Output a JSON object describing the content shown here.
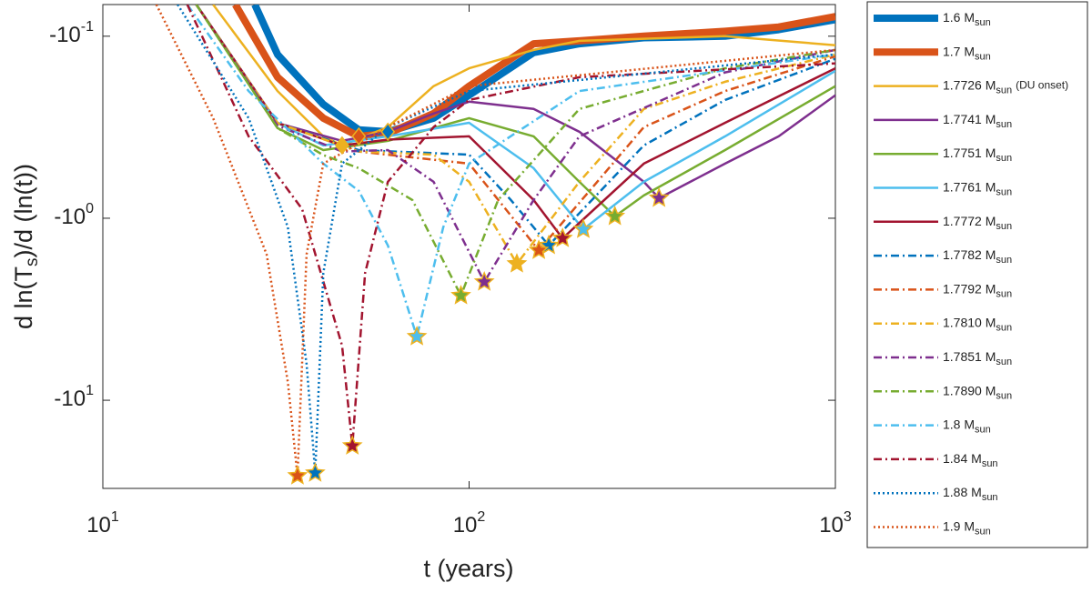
{
  "chart_data": {
    "type": "line",
    "xlabel": "t (years)",
    "ylabel": [
      "d ln(T",
      "s",
      ")/d (ln(t))"
    ],
    "xscale": "log",
    "yscale": "log",
    "xlim": [
      10,
      1000
    ],
    "ylim": [
      -30.5,
      -0.067
    ],
    "xticks": [
      {
        "value": 10,
        "label": "10",
        "exp": "1"
      },
      {
        "value": 100,
        "label": "10",
        "exp": "2"
      },
      {
        "value": 1000,
        "label": "10",
        "exp": "3"
      }
    ],
    "yticks": [
      {
        "value": -0.1,
        "label": "-10",
        "exp": "-1"
      },
      {
        "value": -1,
        "label": "-10",
        "exp": "0"
      },
      {
        "value": -10,
        "label": "-10",
        "exp": "1"
      }
    ],
    "legend": "outside-right",
    "series": [
      {
        "name": "1.6 M",
        "sub": "sun",
        "color": "#0072bd",
        "style": "solid",
        "width": 8,
        "marker": "diamond",
        "x": [
          26,
          30,
          40,
          50,
          60,
          80,
          100,
          150,
          200,
          300,
          500,
          700,
          1000
        ],
        "values": [
          -0.067,
          -0.126,
          -0.237,
          -0.327,
          -0.335,
          -0.282,
          -0.211,
          -0.123,
          -0.11,
          -0.102,
          -0.1,
          -0.092,
          -0.081
        ]
      },
      {
        "name": "1.7 M",
        "sub": "sun",
        "color": "#d95319",
        "style": "solid",
        "width": 8,
        "marker": "diamond",
        "x": [
          23,
          30,
          40,
          50,
          60,
          80,
          100,
          150,
          200,
          300,
          500,
          700,
          1000
        ],
        "values": [
          -0.067,
          -0.168,
          -0.282,
          -0.355,
          -0.343,
          -0.266,
          -0.188,
          -0.11,
          -0.106,
          -0.1,
          -0.094,
          -0.089,
          -0.078
        ]
      },
      {
        "name": "1.7726 M",
        "sub": "sun",
        "note": "(DU onset)",
        "color": "#edb120",
        "style": "solid",
        "width": 2.5,
        "marker": "diamond",
        "x": [
          20,
          30,
          40,
          45,
          60,
          80,
          100,
          150,
          200,
          500,
          1000
        ],
        "values": [
          -0.067,
          -0.2,
          -0.355,
          -0.398,
          -0.316,
          -0.188,
          -0.15,
          -0.119,
          -0.106,
          -0.1,
          -0.112
        ]
      },
      {
        "name": "1.7741 M",
        "sub": "sun",
        "color": "#7e2f8e",
        "style": "solid",
        "width": 2.5,
        "marker": "star",
        "x": [
          18,
          30,
          45,
          60,
          80,
          100,
          150,
          200,
          300,
          330,
          500,
          700,
          1000
        ],
        "values": [
          -0.067,
          -0.3,
          -0.376,
          -0.335,
          -0.266,
          -0.229,
          -0.251,
          -0.335,
          -0.631,
          -0.776,
          -0.501,
          -0.355,
          -0.211
        ]
      },
      {
        "name": "1.7751 M",
        "sub": "sun",
        "color": "#77ac30",
        "style": "solid",
        "width": 2.5,
        "marker": "star",
        "x": [
          18,
          30,
          40,
          60,
          100,
          150,
          200,
          250,
          300,
          500,
          1000
        ],
        "values": [
          -0.067,
          -0.32,
          -0.422,
          -0.376,
          -0.282,
          -0.355,
          -0.631,
          -0.977,
          -0.75,
          -0.422,
          -0.188
        ]
      },
      {
        "name": "1.7761 M",
        "sub": "sun",
        "color": "#4dbeee",
        "style": "solid",
        "width": 2.5,
        "marker": "star",
        "x": [
          18,
          30,
          40,
          60,
          100,
          150,
          205,
          300,
          500,
          1000
        ],
        "values": [
          -0.067,
          -0.3,
          -0.398,
          -0.355,
          -0.299,
          -0.531,
          -1.15,
          -0.631,
          -0.355,
          -0.155
        ]
      },
      {
        "name": "1.7772 M",
        "sub": "sun",
        "color": "#a2142f",
        "style": "solid",
        "width": 2.5,
        "marker": "star",
        "x": [
          18,
          30,
          45,
          60,
          100,
          150,
          180,
          300,
          500,
          1000
        ],
        "values": [
          -0.067,
          -0.3,
          -0.398,
          -0.37,
          -0.355,
          -0.794,
          -1.29,
          -0.501,
          -0.299,
          -0.15
        ]
      },
      {
        "name": "1.7782 M",
        "sub": "sun",
        "color": "#0072bd",
        "style": "dashdot",
        "width": 2.5,
        "marker": "star",
        "x": [
          18,
          30,
          50,
          100,
          130,
          165,
          300,
          500,
          1000
        ],
        "values": [
          -0.067,
          -0.3,
          -0.422,
          -0.447,
          -0.794,
          -1.41,
          -0.398,
          -0.224,
          -0.133
        ]
      },
      {
        "name": "1.7792 M",
        "sub": "sun",
        "color": "#d95319",
        "style": "dashdot",
        "width": 2.5,
        "marker": "star",
        "x": [
          18,
          30,
          50,
          100,
          155,
          300,
          500,
          1000
        ],
        "values": [
          -0.067,
          -0.3,
          -0.43,
          -0.501,
          -1.5,
          -0.316,
          -0.2,
          -0.129
        ]
      },
      {
        "name": "1.7810 M",
        "sub": "sun",
        "color": "#edb120",
        "style": "dashdot",
        "width": 2.5,
        "marker": "star",
        "x": [
          18,
          30,
          50,
          80,
          100,
          135,
          200,
          300,
          500,
          1000
        ],
        "values": [
          -0.067,
          -0.3,
          -0.43,
          -0.447,
          -0.631,
          -1.78,
          -0.631,
          -0.251,
          -0.178,
          -0.126
        ]
      },
      {
        "name": "1.7851 M",
        "sub": "sun",
        "color": "#7e2f8e",
        "style": "dashdot",
        "width": 2.5,
        "marker": "star",
        "x": [
          18,
          30,
          45,
          60,
          80,
          110,
          150,
          200,
          500,
          1000
        ],
        "values": [
          -0.067,
          -0.31,
          -0.43,
          -0.422,
          -0.631,
          -2.24,
          -0.794,
          -0.355,
          -0.158,
          -0.119
        ]
      },
      {
        "name": "1.7890 M",
        "sub": "sun",
        "color": "#77ac30",
        "style": "dashdot",
        "width": 2.5,
        "marker": "star",
        "x": [
          18,
          30,
          40,
          50,
          70,
          95,
          120,
          200,
          500,
          1000
        ],
        "values": [
          -0.067,
          -0.32,
          -0.45,
          -0.531,
          -0.794,
          -2.66,
          -0.794,
          -0.251,
          -0.15,
          -0.119
        ]
      },
      {
        "name": "1.8 M",
        "sub": "sun",
        "color": "#4dbeee",
        "style": "dashdot",
        "width": 2.5,
        "marker": "star",
        "x": [
          17,
          25,
          40,
          50,
          60,
          72,
          85,
          100,
          200,
          1000
        ],
        "values": [
          -0.067,
          -0.2,
          -0.501,
          -0.708,
          -1.41,
          -4.47,
          -1.12,
          -0.501,
          -0.2,
          -0.126
        ]
      },
      {
        "name": "1.84 M",
        "sub": "sun",
        "color": "#a2142f",
        "style": "dashdot",
        "width": 2.5,
        "marker": "star",
        "x": [
          17,
          25,
          35,
          45,
          48,
          52,
          60,
          80,
          100,
          200,
          1000
        ],
        "values": [
          -0.067,
          -0.355,
          -0.891,
          -5.01,
          -17.8,
          -2,
          -0.631,
          -0.316,
          -0.224,
          -0.168,
          -0.141
        ]
      },
      {
        "name": "1.88 M",
        "sub": "sun",
        "color": "#0072bd",
        "style": "dotted",
        "width": 2.5,
        "marker": "star",
        "x": [
          16,
          25,
          32,
          36,
          38,
          40,
          45,
          60,
          100,
          1000
        ],
        "values": [
          -0.067,
          -0.282,
          -1.12,
          -6.31,
          -25.1,
          -2,
          -0.501,
          -0.316,
          -0.2,
          -0.126
        ]
      },
      {
        "name": "1.9 M",
        "sub": "sun",
        "color": "#d95319",
        "style": "dotted",
        "width": 2.5,
        "marker": "star",
        "x": [
          14,
          20,
          28,
          32,
          34,
          36,
          40,
          60,
          100,
          1000
        ],
        "values": [
          -0.067,
          -0.282,
          -1.58,
          -7.94,
          -26,
          -1.58,
          -0.501,
          -0.316,
          -0.188,
          -0.119
        ]
      }
    ]
  }
}
